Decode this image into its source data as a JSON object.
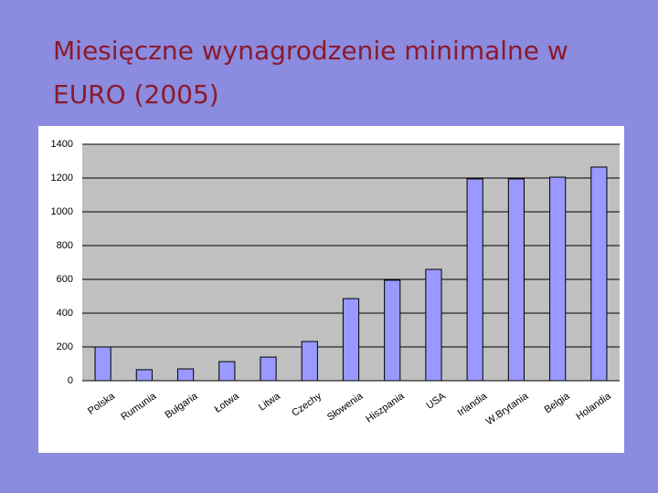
{
  "chart_data": {
    "type": "bar",
    "title": "Miesięczne wynagrodzenie minimalne w EURO (2005)",
    "categories": [
      "Polska",
      "Rumunia",
      "Bułgaria",
      "Łotwa",
      "Litwa",
      "Czechy",
      "Słowenia",
      "Hiszpania",
      "USA",
      "Irlandia",
      "W.Brytania",
      "Belgia",
      "Holandia"
    ],
    "values": [
      200,
      65,
      70,
      113,
      140,
      232,
      486,
      595,
      659,
      1195,
      1195,
      1205,
      1265
    ],
    "color": "#9999ff",
    "ylim": [
      0,
      1400
    ],
    "yticks": [
      0,
      200,
      400,
      600,
      800,
      1000,
      1200,
      1400
    ],
    "grid": true
  }
}
